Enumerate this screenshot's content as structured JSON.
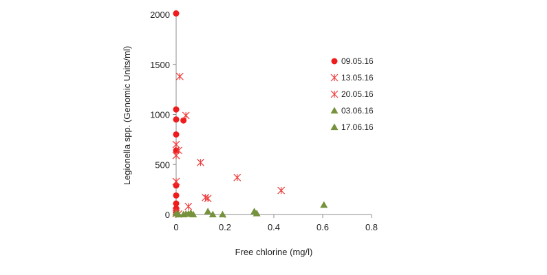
{
  "chart_data": {
    "type": "scatter",
    "title": "",
    "xlabel": "Free chlorine (mg/l)",
    "ylabel": "Legionella spp. (Genomic Units/ml)",
    "xlim": [
      0,
      0.8
    ],
    "ylim": [
      0,
      2000
    ],
    "x_ticks": [
      "0",
      "0.2",
      "0.4",
      "0.6",
      "0.8"
    ],
    "y_ticks": [
      "0",
      "500",
      "1000",
      "1500",
      "2000"
    ],
    "grid": false,
    "legend_position": "right",
    "series": [
      {
        "name": "09.05.16",
        "marker": "circle",
        "color": "#ee1c1c",
        "points": [
          [
            0.0,
            2010
          ],
          [
            0.0,
            1050
          ],
          [
            0.0,
            950
          ],
          [
            0.03,
            940
          ],
          [
            0.0,
            800
          ],
          [
            0.0,
            640
          ],
          [
            0.0,
            290
          ],
          [
            0.0,
            190
          ],
          [
            0.0,
            110
          ],
          [
            0.0,
            60
          ],
          [
            0.0,
            20
          ]
        ]
      },
      {
        "name": "13.05.16",
        "marker": "asterisk",
        "color": "#ee3b3b",
        "points": [
          [
            0.015,
            1380
          ],
          [
            0.04,
            990
          ],
          [
            0.0,
            700
          ],
          [
            0.01,
            640
          ],
          [
            0.0,
            590
          ],
          [
            0.1,
            520
          ],
          [
            0.25,
            370
          ],
          [
            0.0,
            330
          ],
          [
            0.43,
            240
          ],
          [
            0.12,
            170
          ],
          [
            0.13,
            160
          ],
          [
            0.05,
            80
          ]
        ]
      },
      {
        "name": "20.05.16",
        "marker": "asterisk",
        "color": "#ee3b3b",
        "points": [
          [
            0.0,
            30
          ],
          [
            0.0,
            10
          ],
          [
            0.01,
            5
          ]
        ]
      },
      {
        "name": "03.06.16",
        "marker": "triangle",
        "color": "#76923c",
        "points": [
          [
            0.13,
            30
          ],
          [
            0.32,
            30
          ],
          [
            0.33,
            10
          ],
          [
            0.06,
            15
          ],
          [
            0.04,
            5
          ],
          [
            0.07,
            0
          ],
          [
            0.15,
            0
          ],
          [
            0.19,
            0
          ]
        ]
      },
      {
        "name": "17.06.16",
        "marker": "triangle",
        "color": "#76923c",
        "points": [
          [
            0.605,
            95
          ],
          [
            0.0,
            10
          ],
          [
            0.03,
            0
          ],
          [
            0.05,
            5
          ],
          [
            0.01,
            0
          ]
        ]
      }
    ]
  }
}
